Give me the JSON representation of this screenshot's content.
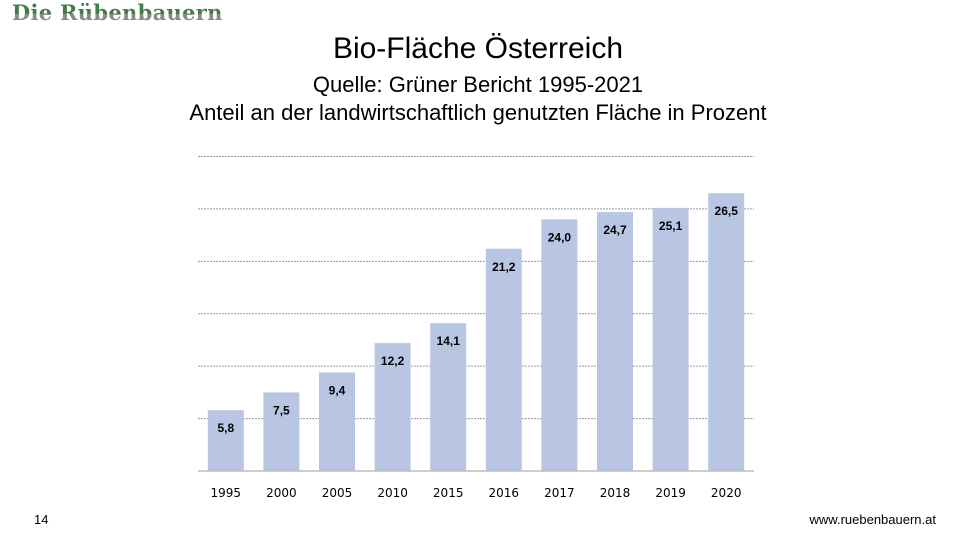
{
  "logo_text": "Die Rübenbauern",
  "slide_number": "14",
  "footer_url": "www.ruebenbauern.at",
  "chart_data": {
    "type": "bar",
    "title": "Bio-Fläche Österreich",
    "subtitle": "Quelle: Grüner Bericht 1995-2021",
    "subtitle2": "Anteil an der landwirtschaftlich genutzten Fläche in Prozent",
    "categories": [
      "1995",
      "2000",
      "2005",
      "2010",
      "2015",
      "2016",
      "2017",
      "2018",
      "2019",
      "2020"
    ],
    "values": [
      5.8,
      7.5,
      9.4,
      12.2,
      14.1,
      21.2,
      24.0,
      24.7,
      25.1,
      26.5
    ],
    "labels": [
      "5,8",
      "7,5",
      "9,4",
      "12,2",
      "14,1",
      "21,2",
      "24,0",
      "24,7",
      "25,1",
      "26,5"
    ],
    "xlabel": "",
    "ylabel": "",
    "ylim": [
      0,
      30
    ],
    "ygrid_step": 5,
    "grid": true,
    "bar_color": "#b8c6e4"
  }
}
